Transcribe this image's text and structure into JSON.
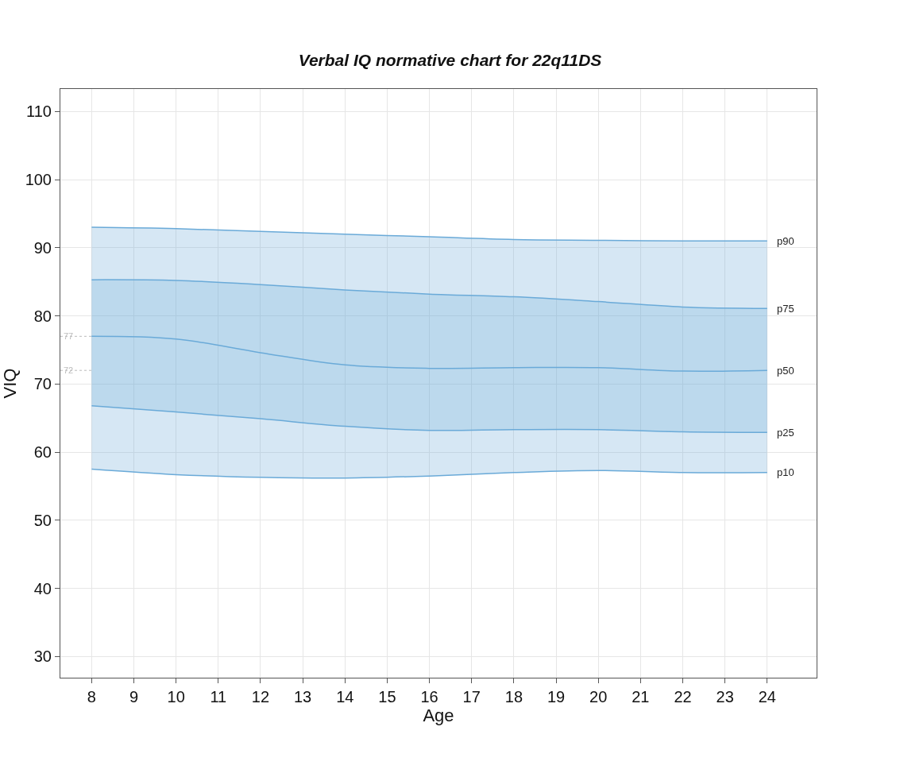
{
  "chart_data": {
    "type": "line",
    "title": "Verbal IQ normative chart for 22q11DS",
    "xlabel": "Age",
    "ylabel": "VIQ",
    "x": [
      8,
      10,
      12,
      14,
      16,
      18,
      20,
      22,
      24
    ],
    "series": [
      {
        "name": "p10",
        "color": "#6aaad8",
        "values": [
          57.5,
          56.7,
          56.3,
          56.2,
          56.5,
          57,
          57.3,
          57,
          57
        ]
      },
      {
        "name": "p25",
        "type": "area",
        "color": "#6aaad8",
        "values": [
          66.8,
          65.9,
          64.9,
          63.8,
          63.2,
          63.3,
          63.3,
          63.0,
          62.9
        ]
      },
      {
        "name": "p50",
        "type": "area",
        "color": "#6aaad8",
        "values": [
          77,
          76.6,
          74.6,
          72.8,
          72.3,
          72.4,
          72.4,
          71.9,
          72
        ]
      },
      {
        "name": "p75",
        "type": "area",
        "color": "#6aaad8",
        "values": [
          85.3,
          85.2,
          84.6,
          83.8,
          83.2,
          82.8,
          82.1,
          81.3,
          81.1
        ]
      },
      {
        "name": "p90",
        "type": "area",
        "color": "#6aaad8",
        "values": [
          93,
          92.8,
          92.4,
          92,
          91.6,
          91.2,
          91.1,
          91,
          91
        ]
      }
    ],
    "xlim": [
      7.26,
      25.17
    ],
    "ylim": [
      26.9,
      113.3
    ],
    "xticks": [
      8,
      9,
      10,
      11,
      12,
      13,
      14,
      15,
      16,
      17,
      18,
      19,
      20,
      21,
      22,
      23,
      24
    ],
    "yticks": [
      30,
      40,
      50,
      60,
      70,
      80,
      90,
      100,
      110
    ],
    "ref_lines": [
      {
        "axis": "y",
        "value": 77,
        "label": "77",
        "color": "#bbbbbb",
        "line_style": "dotted"
      },
      {
        "axis": "y",
        "value": 72,
        "label": "72",
        "color": "#bbbbbb",
        "line_style": "dotted"
      }
    ],
    "grid": true,
    "legend": false,
    "marker": "none",
    "line_style": "solid"
  }
}
